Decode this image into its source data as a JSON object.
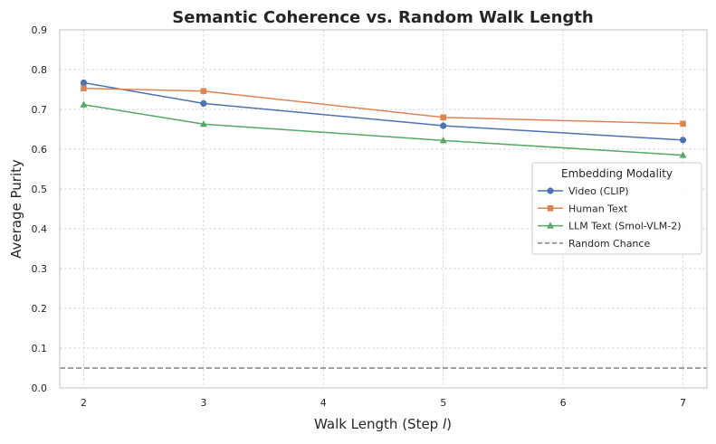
{
  "chart_data": {
    "type": "line",
    "title": "Semantic Coherence vs. Random Walk Length",
    "xlabel": "Walk Length (Step ",
    "xlabel_italic": "l",
    "xlabel_suffix": ")",
    "ylabel": "Average Purity",
    "xlim": [
      1.8,
      7.2
    ],
    "ylim": [
      0.0,
      0.9
    ],
    "xticks": [
      2,
      3,
      4,
      5,
      6,
      7
    ],
    "yticks": [
      "0.0",
      "0.1",
      "0.2",
      "0.3",
      "0.4",
      "0.5",
      "0.6",
      "0.7",
      "0.8",
      "0.9"
    ],
    "grid": true,
    "legend_title": "Embedding Modality",
    "legend_position": "center-right",
    "x": [
      2,
      3,
      5,
      7
    ],
    "series": [
      {
        "name": "Video (CLIP)",
        "values": [
          0.767,
          0.715,
          0.659,
          0.623
        ],
        "color": "#4c72b0",
        "marker": "circle"
      },
      {
        "name": "Human Text",
        "values": [
          0.753,
          0.746,
          0.68,
          0.664
        ],
        "color": "#dd8452",
        "marker": "square"
      },
      {
        "name": "LLM Text (Smol-VLM-2)",
        "values": [
          0.712,
          0.663,
          0.622,
          0.585
        ],
        "color": "#55a868",
        "marker": "triangle"
      }
    ],
    "reference_line": {
      "name": "Random Chance",
      "value": 0.05,
      "color": "#808080",
      "style": "dashed"
    }
  }
}
